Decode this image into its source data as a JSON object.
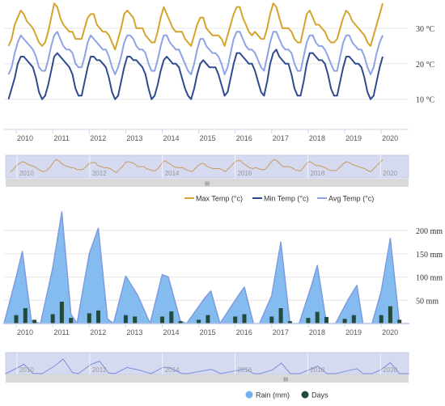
{
  "colors": {
    "max_temp": "#D4A52C",
    "min_temp": "#2E4B8F",
    "avg_temp": "#8EA3E6",
    "rain_fill": "#6FB0EC",
    "rain_line": "#7E9BE0",
    "days_bar": "#244A3C",
    "navigator_bg": "#D5DAF0",
    "scrollbar": "#D9D9D9",
    "grid": "#E6E6E6"
  },
  "temperature_chart": {
    "legend": [
      {
        "label": "Max Temp (°c)",
        "color_key": "max_temp",
        "icon": "line-icon"
      },
      {
        "label": "Min Temp (°c)",
        "color_key": "min_temp",
        "icon": "line-icon"
      },
      {
        "label": "Avg Temp (°c)",
        "color_key": "avg_temp",
        "icon": "line-icon"
      }
    ],
    "navigator_labels": [
      "2010",
      "2012",
      "2014",
      "2016",
      "2018",
      "2020"
    ],
    "scrollbar_grip": "III"
  },
  "rain_chart": {
    "legend": [
      {
        "label": "Rain (mm)",
        "color_key": "rain_fill",
        "icon": "circle-icon"
      },
      {
        "label": "Days",
        "color_key": "days_bar",
        "icon": "circle-icon"
      }
    ],
    "navigator_labels": [
      "2010",
      "2012",
      "2014",
      "2016",
      "2018",
      "2020"
    ],
    "scrollbar_grip": "III"
  },
  "chart_data": [
    {
      "type": "line",
      "x_axis": {
        "tick_labels": [
          "2010",
          "2011",
          "2012",
          "2013",
          "2014",
          "2015",
          "2016",
          "2017",
          "2018",
          "2019",
          "2020"
        ],
        "range": [
          "2009-09",
          "2020-10"
        ]
      },
      "y_axis": {
        "tick_labels": [
          "10 °C",
          "20 °C",
          "30 °C"
        ],
        "ticks": [
          10,
          20,
          30
        ],
        "range": [
          1.5,
          37.5
        ],
        "side": "right"
      },
      "grid": true,
      "legend_position": "bottom-right",
      "monthly_profile_note_free": true,
      "series": [
        {
          "name": "Max Temp (°c)",
          "color_key": "max_temp",
          "values": [
            [
              25,
              27,
              31,
              33,
              35,
              34,
              32,
              31,
              30,
              28,
              26,
              25
            ],
            [
              26,
              29,
              33,
              37,
              36,
              33,
              31,
              30,
              29,
              29,
              27,
              27
            ],
            [
              27,
              30,
              33,
              34,
              34,
              31,
              30,
              29,
              29,
              28,
              26,
              24
            ],
            [
              27,
              30,
              34,
              35,
              34,
              33,
              30,
              30,
              30,
              28,
              27,
              26
            ],
            [
              26,
              29,
              33,
              36,
              34,
              32,
              30,
              29,
              29,
              29,
              27,
              26
            ],
            [
              25,
              28,
              31,
              33,
              33,
              30,
              29,
              28,
              28,
              28,
              27,
              25
            ],
            [
              28,
              31,
              34,
              36,
              36,
              33,
              31,
              29,
              28,
              29,
              28,
              27
            ],
            [
              27,
              30,
              34,
              37,
              36,
              33,
              30,
              30,
              30,
              29,
              27,
              26
            ],
            [
              26,
              30,
              34,
              35,
              33,
              31,
              31,
              30,
              29,
              27,
              26,
              26
            ],
            [
              27,
              30,
              33,
              35,
              34,
              32,
              31,
              30,
              29,
              28,
              26,
              25
            ],
            [
              28,
              31,
              34,
              37
            ]
          ]
        },
        {
          "name": "Avg Temp (°c)",
          "color_key": "avg_temp",
          "values": [
            [
              17,
              19,
              23,
              26,
              28,
              27,
              26,
              25,
              24,
              22,
              19,
              18
            ],
            [
              18,
              21,
              25,
              28,
              29,
              27,
              25,
              24,
              24,
              23,
              20,
              19
            ],
            [
              19,
              22,
              26,
              28,
              27,
              26,
              25,
              24,
              24,
              22,
              19,
              17
            ],
            [
              19,
              22,
              26,
              28,
              28,
              27,
              25,
              24,
              24,
              23,
              20,
              18
            ],
            [
              18,
              21,
              25,
              28,
              28,
              26,
              25,
              24,
              24,
              22,
              20,
              18
            ],
            [
              17,
              20,
              24,
              27,
              27,
              25,
              24,
              23,
              23,
              22,
              20,
              17
            ],
            [
              19,
              23,
              27,
              29,
              29,
              27,
              25,
              24,
              24,
              23,
              21,
              19
            ],
            [
              18,
              22,
              26,
              29,
              29,
              27,
              25,
              24,
              24,
              23,
              20,
              18
            ],
            [
              18,
              22,
              26,
              28,
              28,
              26,
              25,
              25,
              24,
              22,
              20,
              18
            ],
            [
              18,
              22,
              26,
              28,
              28,
              26,
              25,
              24,
              24,
              22,
              19,
              17
            ],
            [
              19,
              23,
              26,
              28
            ]
          ]
        },
        {
          "name": "Min Temp (°c)",
          "color_key": "min_temp",
          "values": [
            [
              10,
              13,
              16,
              20,
              22,
              22,
              21,
              20,
              19,
              16,
              12,
              10
            ],
            [
              11,
              14,
              18,
              22,
              23,
              22,
              21,
              20,
              19,
              17,
              13,
              11
            ],
            [
              11,
              15,
              19,
              22,
              22,
              21,
              21,
              20,
              19,
              16,
              12,
              10
            ],
            [
              11,
              15,
              19,
              22,
              22,
              21,
              21,
              20,
              19,
              17,
              13,
              10
            ],
            [
              11,
              14,
              18,
              21,
              22,
              21,
              20,
              20,
              19,
              16,
              13,
              11
            ],
            [
              10,
              13,
              17,
              20,
              21,
              20,
              19,
              19,
              19,
              17,
              14,
              11
            ],
            [
              12,
              16,
              20,
              23,
              23,
              22,
              21,
              20,
              20,
              18,
              15,
              12
            ],
            [
              11,
              15,
              20,
              23,
              24,
              22,
              21,
              20,
              20,
              17,
              13,
              11
            ],
            [
              11,
              15,
              20,
              23,
              23,
              22,
              21,
              21,
              20,
              17,
              13,
              11
            ],
            [
              11,
              15,
              19,
              22,
              22,
              21,
              20,
              20,
              19,
              16,
              12,
              10
            ],
            [
              11,
              15,
              19,
              22
            ]
          ]
        }
      ]
    },
    {
      "type": "area",
      "x_axis": {
        "tick_labels": [
          "2010",
          "2011",
          "2012",
          "2013",
          "2014",
          "2015",
          "2016",
          "2017",
          "2018",
          "2019",
          "2020"
        ],
        "range": [
          "2009-09",
          "2020-10"
        ]
      },
      "y_axis": {
        "tick_labels": [
          "50 mm",
          "100 mm",
          "150 mm",
          "200 mm"
        ],
        "ticks": [
          50,
          100,
          150,
          200
        ],
        "range": [
          0,
          240
        ],
        "side": "right"
      },
      "grid": true,
      "legend_position": "bottom-right",
      "series": [
        {
          "name": "Rain (mm)",
          "color_key": "rain_fill",
          "type": "area",
          "points": [
            [
              "2009-09",
              0
            ],
            [
              "2010-01",
              100
            ],
            [
              "2010-03",
              155
            ],
            [
              "2010-06",
              5
            ],
            [
              "2010-09",
              0
            ],
            [
              "2011-01",
              120
            ],
            [
              "2011-04",
              240
            ],
            [
              "2011-07",
              20
            ],
            [
              "2011-09",
              0
            ],
            [
              "2012-01",
              150
            ],
            [
              "2012-04",
              205
            ],
            [
              "2012-07",
              10
            ],
            [
              "2012-09",
              0
            ],
            [
              "2013-01",
              102
            ],
            [
              "2013-05",
              60
            ],
            [
              "2013-09",
              0
            ],
            [
              "2014-01",
              105
            ],
            [
              "2014-03",
              100
            ],
            [
              "2014-07",
              5
            ],
            [
              "2014-09",
              0
            ],
            [
              "2015-03",
              55
            ],
            [
              "2015-05",
              70
            ],
            [
              "2015-08",
              0
            ],
            [
              "2016-02",
              60
            ],
            [
              "2016-04",
              78
            ],
            [
              "2016-07",
              0
            ],
            [
              "2016-09",
              0
            ],
            [
              "2017-01",
              60
            ],
            [
              "2017-04",
              175
            ],
            [
              "2017-07",
              0
            ],
            [
              "2017-10",
              0
            ],
            [
              "2018-02",
              80
            ],
            [
              "2018-04",
              125
            ],
            [
              "2018-07",
              0
            ],
            [
              "2018-10",
              0
            ],
            [
              "2019-02",
              50
            ],
            [
              "2019-05",
              82
            ],
            [
              "2019-07",
              0
            ],
            [
              "2019-10",
              0
            ],
            [
              "2020-01",
              70
            ],
            [
              "2020-04",
              183
            ],
            [
              "2020-07",
              0
            ],
            [
              "2020-10",
              0
            ]
          ]
        },
        {
          "name": "Days",
          "color_key": "days_bar",
          "type": "column",
          "points": [
            [
              "2010-01",
              18
            ],
            [
              "2010-04",
              33
            ],
            [
              "2010-07",
              8
            ],
            [
              "2011-01",
              20
            ],
            [
              "2011-04",
              47
            ],
            [
              "2011-07",
              12
            ],
            [
              "2012-01",
              22
            ],
            [
              "2012-04",
              28
            ],
            [
              "2013-01",
              18
            ],
            [
              "2013-04",
              15
            ],
            [
              "2014-01",
              15
            ],
            [
              "2014-04",
              26
            ],
            [
              "2014-07",
              5
            ],
            [
              "2015-01",
              8
            ],
            [
              "2015-04",
              18
            ],
            [
              "2016-01",
              15
            ],
            [
              "2016-04",
              20
            ],
            [
              "2017-01",
              15
            ],
            [
              "2017-04",
              33
            ],
            [
              "2017-07",
              5
            ],
            [
              "2018-01",
              12
            ],
            [
              "2018-04",
              25
            ],
            [
              "2018-07",
              14
            ],
            [
              "2019-01",
              10
            ],
            [
              "2019-04",
              18
            ],
            [
              "2020-01",
              18
            ],
            [
              "2020-04",
              37
            ],
            [
              "2020-07",
              8
            ]
          ]
        }
      ]
    }
  ]
}
